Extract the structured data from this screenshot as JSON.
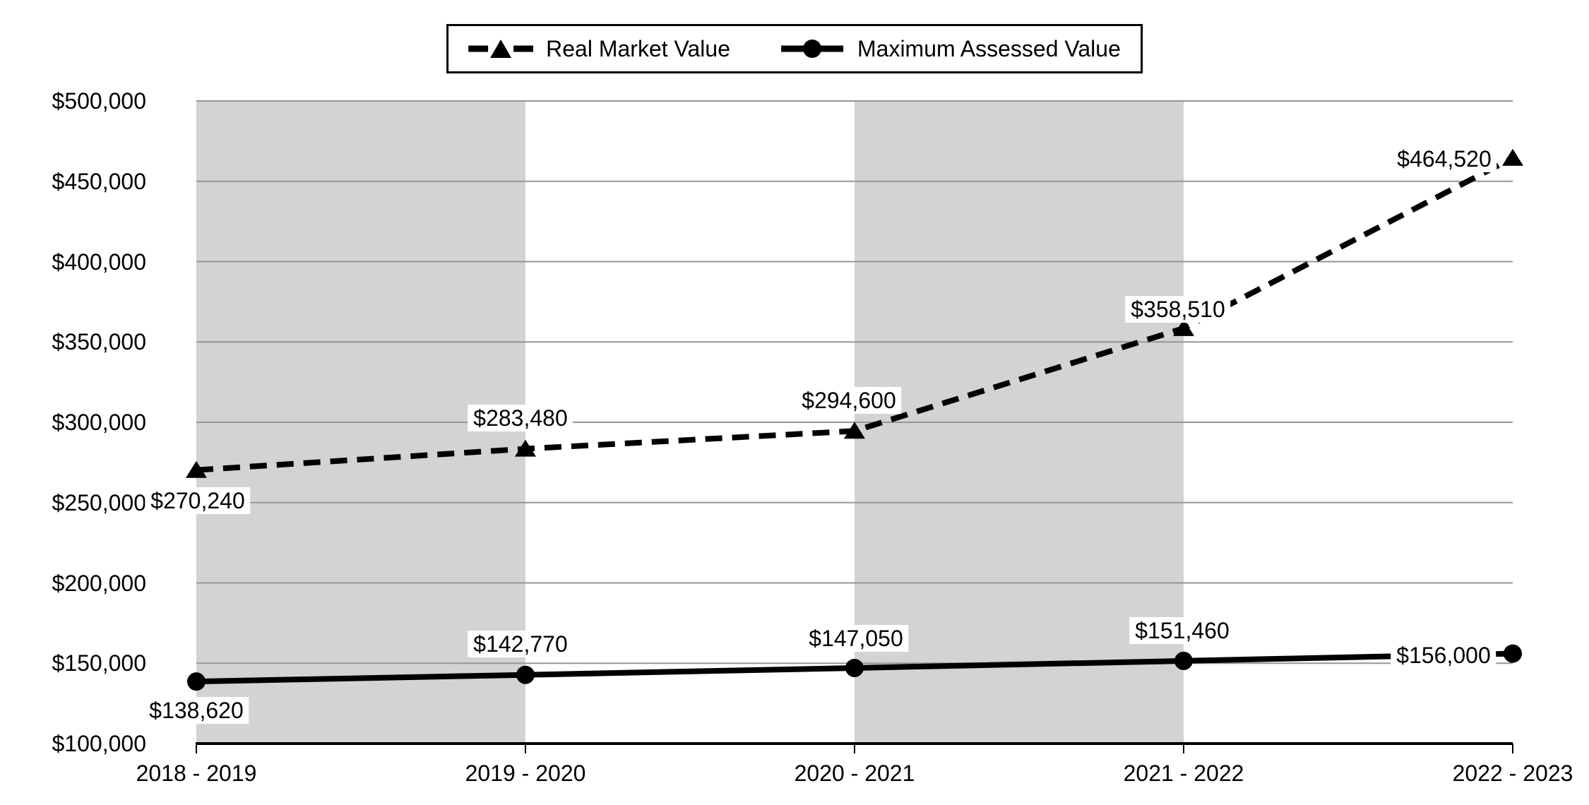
{
  "legend": {
    "items": [
      {
        "label": "Real Market Value",
        "sample": "dashed-line-triangle-marker"
      },
      {
        "label": "Maximum Assessed Value",
        "sample": "solid-line-circle-marker"
      }
    ]
  },
  "chart_data": {
    "type": "line",
    "title": "",
    "xlabel": "",
    "ylabel": "",
    "categories": [
      "2018 - 2019",
      "2019 - 2020",
      "2020 - 2021",
      "2021 - 2022",
      "2022 - 2023"
    ],
    "series": [
      {
        "name": "Real Market Value",
        "line_style": "dashed",
        "marker": "triangle",
        "color": "#000000",
        "values": [
          270240,
          283480,
          294600,
          358510,
          464520
        ],
        "data_labels": [
          "$270,240",
          "$283,480",
          "$294,600",
          "$358,510",
          "$464,520"
        ]
      },
      {
        "name": "Maximum Assessed Value",
        "line_style": "solid",
        "marker": "circle",
        "color": "#000000",
        "values": [
          138620,
          142770,
          147050,
          151460,
          156000
        ],
        "data_labels": [
          "$138,620",
          "$142,770",
          "$147,050",
          "$151,460",
          "$156,000"
        ]
      }
    ],
    "ylim": [
      100000,
      500000
    ],
    "y_tick_step": 50000,
    "y_ticks": [
      {
        "value": 500000,
        "label": "$500,000"
      },
      {
        "value": 450000,
        "label": "$450,000"
      },
      {
        "value": 400000,
        "label": "$400,000"
      },
      {
        "value": 350000,
        "label": "$350,000"
      },
      {
        "value": 300000,
        "label": "$300,000"
      },
      {
        "value": 250000,
        "label": "$250,000"
      },
      {
        "value": 200000,
        "label": "$200,000"
      },
      {
        "value": 150000,
        "label": "$150,000"
      },
      {
        "value": 100000,
        "label": "$100,000"
      }
    ],
    "grid": true,
    "legend_position": "top-center",
    "shaded_band_category_spans": [
      [
        0,
        1
      ],
      [
        2,
        3
      ]
    ],
    "colors": {
      "band": "#d3d3d3",
      "gridline": "#969696",
      "axis": "#000000",
      "text": "#000000",
      "label_background": "#ffffff"
    }
  }
}
